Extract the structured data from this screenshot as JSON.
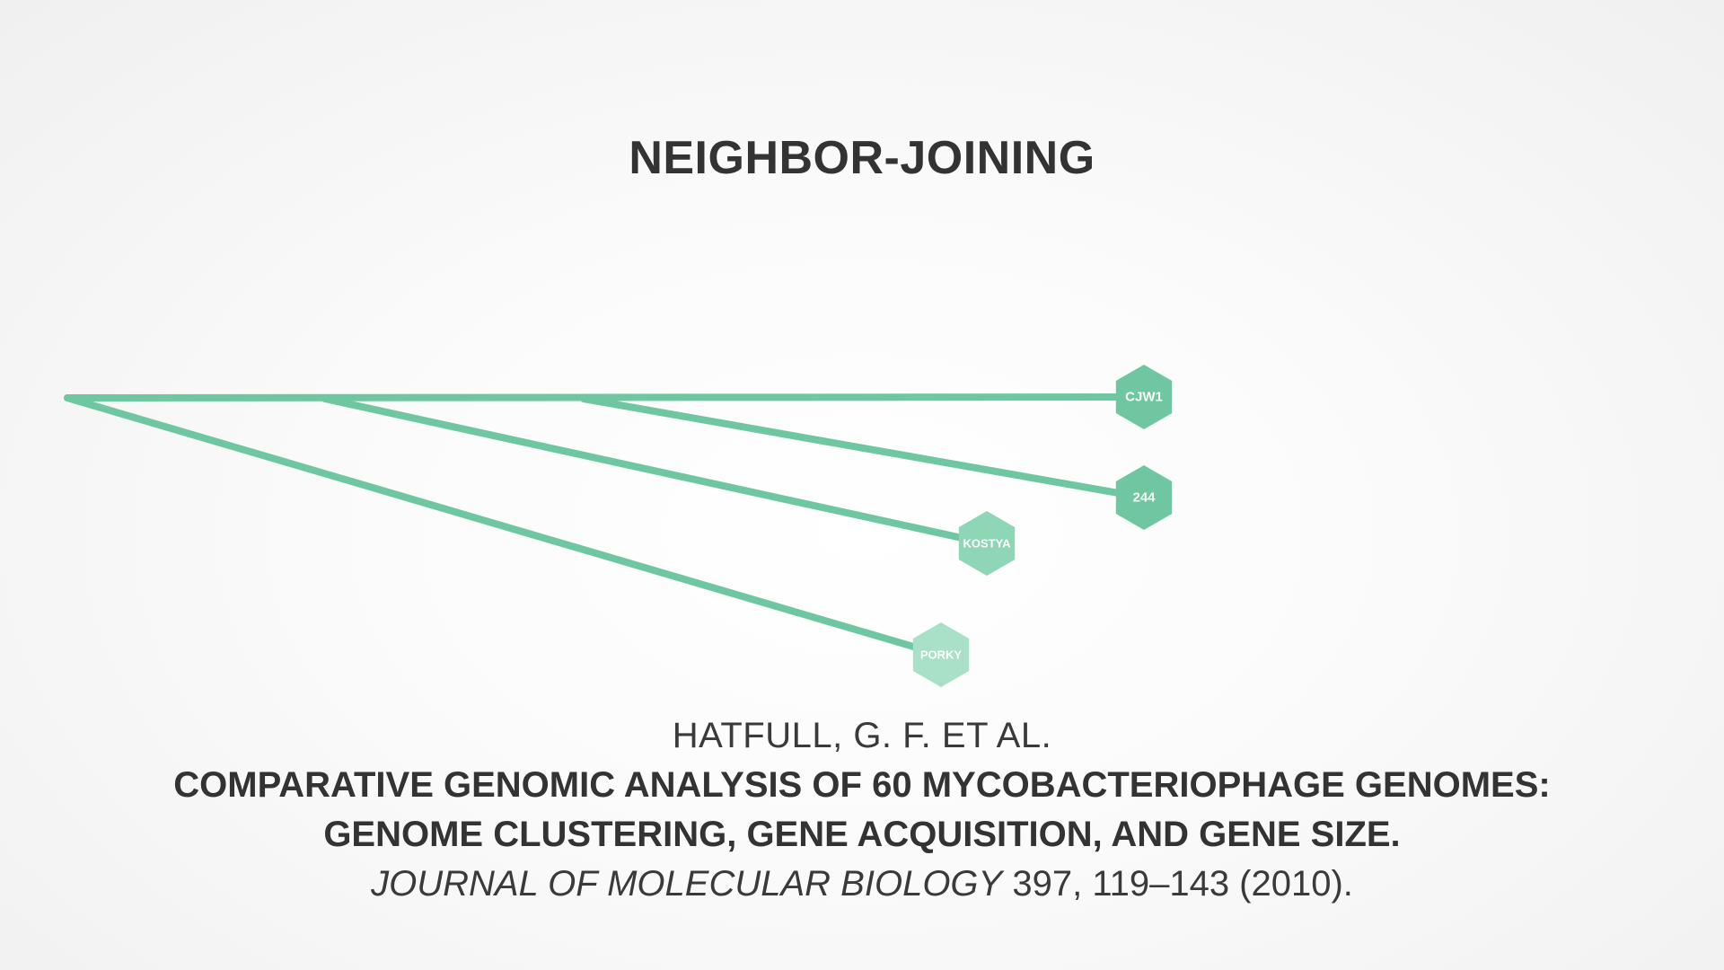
{
  "title": "NEIGHBOR-JOINING",
  "tree": {
    "colors": {
      "branch": "#6fc7a2",
      "node_cjw1": "#6fc7a2",
      "node_244": "#6fc7a2",
      "node_kostya": "#8fd6b7",
      "node_porky": "#a9e0c8",
      "node_text": "#ffffff"
    },
    "leaves": [
      {
        "id": "cjw1",
        "label": "CJW1"
      },
      {
        "id": "244",
        "label": "244"
      },
      {
        "id": "kostya",
        "label": "KOSTYA"
      },
      {
        "id": "porky",
        "label": "PORKY"
      }
    ]
  },
  "citation": {
    "authors": "HATFULL, G. F. ET AL.",
    "title_line1": "COMPARATIVE GENOMIC ANALYSIS OF 60 MYCOBACTERIOPHAGE GENOMES:",
    "title_line2": "GENOME CLUSTERING, GENE ACQUISITION, AND GENE SIZE.",
    "journal": "JOURNAL OF MOLECULAR BIOLOGY",
    "volume_pages_year": " 397, 119–143 (2010)."
  }
}
